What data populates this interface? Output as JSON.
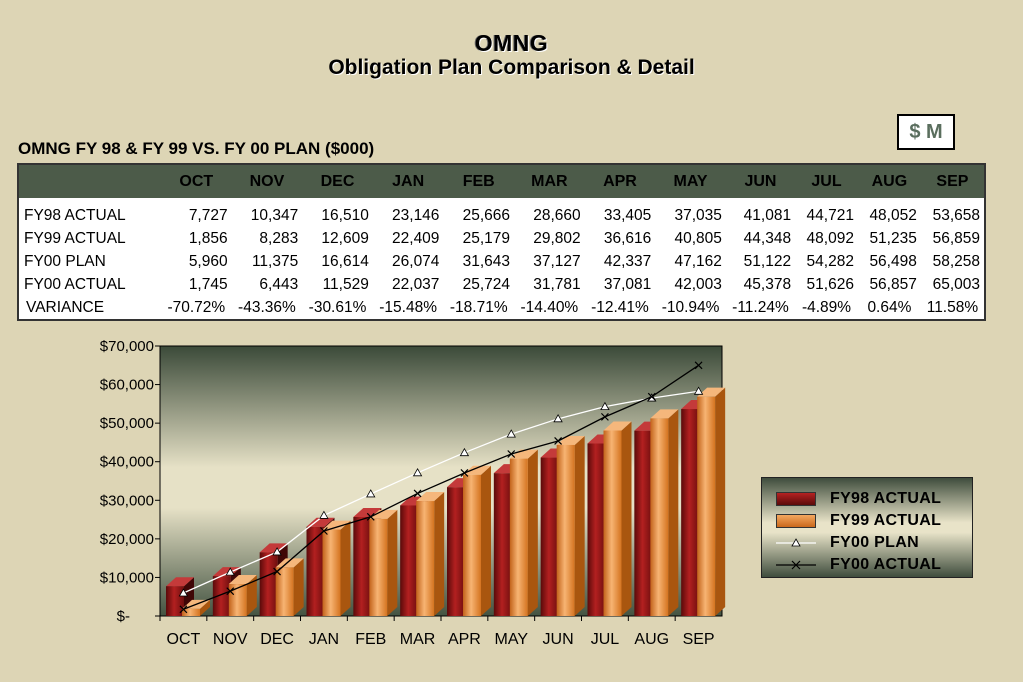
{
  "header": {
    "title": "OMNG",
    "subtitle": "Obligation Plan Comparison & Detail",
    "unit_badge": "$ M"
  },
  "table": {
    "caption": "OMNG FY 98 & FY 99 VS. FY 00 PLAN ($000)",
    "columns": [
      "OCT",
      "NOV",
      "DEC",
      "JAN",
      "FEB",
      "MAR",
      "APR",
      "MAY",
      "JUN",
      "JUL",
      "AUG",
      "SEP"
    ],
    "rows": [
      {
        "label": "FY98 ACTUAL",
        "values": [
          "7,727",
          "10,347",
          "16,510",
          "23,146",
          "25,666",
          "28,660",
          "33,405",
          "37,035",
          "41,081",
          "44,721",
          "48,052",
          "53,658"
        ]
      },
      {
        "label": "FY99 ACTUAL",
        "values": [
          "1,856",
          "8,283",
          "12,609",
          "22,409",
          "25,179",
          "29,802",
          "36,616",
          "40,805",
          "44,348",
          "48,092",
          "51,235",
          "56,859"
        ]
      },
      {
        "label": "FY00 PLAN",
        "values": [
          "5,960",
          "11,375",
          "16,614",
          "26,074",
          "31,643",
          "37,127",
          "42,337",
          "47,162",
          "51,122",
          "54,282",
          "56,498",
          "58,258"
        ]
      },
      {
        "label": "FY00 ACTUAL",
        "values": [
          "1,745",
          "6,443",
          "11,529",
          "22,037",
          "25,724",
          "31,781",
          "37,081",
          "42,003",
          "45,378",
          "51,626",
          "56,857",
          "65,003"
        ]
      },
      {
        "label": "VARIANCE",
        "values": [
          "-70.72%",
          "-43.36%",
          "-30.61%",
          "-15.48%",
          "-18.71%",
          "-14.40%",
          "-12.41%",
          "-10.94%",
          "-11.24%",
          "-4.89%",
          "0.64%",
          "11.58%"
        ]
      }
    ]
  },
  "colors": {
    "fy98": "#8a1414",
    "fy99": "#e2832d",
    "plan_line": "#ffffff",
    "actual_line": "#000000",
    "header_bg": "#4c5b49"
  },
  "chart_data": {
    "type": "bar",
    "categories": [
      "OCT",
      "NOV",
      "DEC",
      "JAN",
      "FEB",
      "MAR",
      "APR",
      "MAY",
      "JUN",
      "JUL",
      "AUG",
      "SEP"
    ],
    "series": [
      {
        "name": "FY98 ACTUAL",
        "type": "bar",
        "values": [
          7727,
          10347,
          16510,
          23146,
          25666,
          28660,
          33405,
          37035,
          41081,
          44721,
          48052,
          53658
        ]
      },
      {
        "name": "FY99 ACTUAL",
        "type": "bar",
        "values": [
          1856,
          8283,
          12609,
          22409,
          25179,
          29802,
          36616,
          40805,
          44348,
          48092,
          51235,
          56859
        ]
      },
      {
        "name": "FY00 PLAN",
        "type": "line",
        "marker": "triangle",
        "values": [
          5960,
          11375,
          16614,
          26074,
          31643,
          37127,
          42337,
          47162,
          51122,
          54282,
          56498,
          58258
        ]
      },
      {
        "name": "FY00 ACTUAL",
        "type": "line",
        "marker": "x",
        "values": [
          1745,
          6443,
          11529,
          22037,
          25724,
          31781,
          37081,
          42003,
          45378,
          51626,
          56857,
          65003
        ]
      }
    ],
    "ylim": [
      0,
      70000
    ],
    "yticks": [
      0,
      10000,
      20000,
      30000,
      40000,
      50000,
      60000,
      70000
    ],
    "ytick_labels": [
      "$-",
      "$10,000",
      "$20,000",
      "$30,000",
      "$40,000",
      "$50,000",
      "$60,000",
      "$70,000"
    ],
    "legend": "right"
  }
}
